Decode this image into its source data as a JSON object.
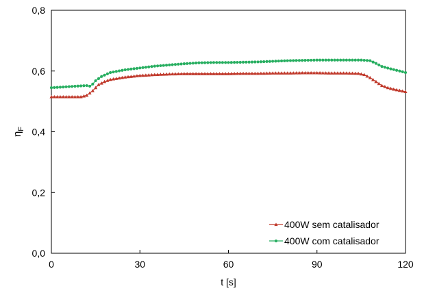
{
  "chart_data": {
    "type": "line",
    "title": "",
    "xlabel": "t [s]",
    "ylabel": "ηF",
    "ylabel_main": "η",
    "ylabel_sub": "F",
    "xlim": [
      0,
      120
    ],
    "ylim": [
      0,
      0.8
    ],
    "xticks": [
      0,
      30,
      60,
      90,
      120
    ],
    "xtick_labels": [
      "0",
      "30",
      "60",
      "90",
      "120"
    ],
    "yticks": [
      0,
      0.2,
      0.4,
      0.6,
      0.8
    ],
    "ytick_labels": [
      "0,0",
      "0,2",
      "0,4",
      "0,6",
      "0,8"
    ],
    "grid": false,
    "legend_position": "bottom-right",
    "series": [
      {
        "name": "400W sem catalisador",
        "color": "#c0392b",
        "marker": "triangle",
        "points": [
          [
            0,
            0.515
          ],
          [
            5,
            0.515
          ],
          [
            10,
            0.515
          ],
          [
            12,
            0.52
          ],
          [
            14,
            0.535
          ],
          [
            16,
            0.555
          ],
          [
            18,
            0.565
          ],
          [
            20,
            0.572
          ],
          [
            25,
            0.58
          ],
          [
            30,
            0.585
          ],
          [
            35,
            0.588
          ],
          [
            40,
            0.59
          ],
          [
            45,
            0.591
          ],
          [
            50,
            0.591
          ],
          [
            55,
            0.591
          ],
          [
            60,
            0.591
          ],
          [
            65,
            0.592
          ],
          [
            70,
            0.592
          ],
          [
            75,
            0.593
          ],
          [
            80,
            0.593
          ],
          [
            85,
            0.594
          ],
          [
            90,
            0.594
          ],
          [
            95,
            0.593
          ],
          [
            100,
            0.593
          ],
          [
            104,
            0.592
          ],
          [
            106,
            0.588
          ],
          [
            108,
            0.578
          ],
          [
            110,
            0.565
          ],
          [
            112,
            0.552
          ],
          [
            114,
            0.545
          ],
          [
            116,
            0.54
          ],
          [
            118,
            0.536
          ],
          [
            120,
            0.532
          ]
        ]
      },
      {
        "name": "400W com catalisador",
        "color": "#27ae60",
        "marker": "circle",
        "points": [
          [
            0,
            0.545
          ],
          [
            5,
            0.548
          ],
          [
            10,
            0.551
          ],
          [
            12,
            0.552
          ],
          [
            13,
            0.55
          ],
          [
            14,
            0.557
          ],
          [
            15,
            0.568
          ],
          [
            17,
            0.582
          ],
          [
            20,
            0.595
          ],
          [
            25,
            0.604
          ],
          [
            30,
            0.61
          ],
          [
            35,
            0.616
          ],
          [
            40,
            0.62
          ],
          [
            45,
            0.624
          ],
          [
            50,
            0.627
          ],
          [
            55,
            0.628
          ],
          [
            60,
            0.628
          ],
          [
            65,
            0.629
          ],
          [
            70,
            0.63
          ],
          [
            75,
            0.632
          ],
          [
            80,
            0.634
          ],
          [
            85,
            0.635
          ],
          [
            90,
            0.636
          ],
          [
            95,
            0.636
          ],
          [
            100,
            0.636
          ],
          [
            105,
            0.636
          ],
          [
            108,
            0.634
          ],
          [
            110,
            0.625
          ],
          [
            112,
            0.615
          ],
          [
            115,
            0.607
          ],
          [
            118,
            0.6
          ],
          [
            120,
            0.595
          ]
        ]
      }
    ]
  }
}
